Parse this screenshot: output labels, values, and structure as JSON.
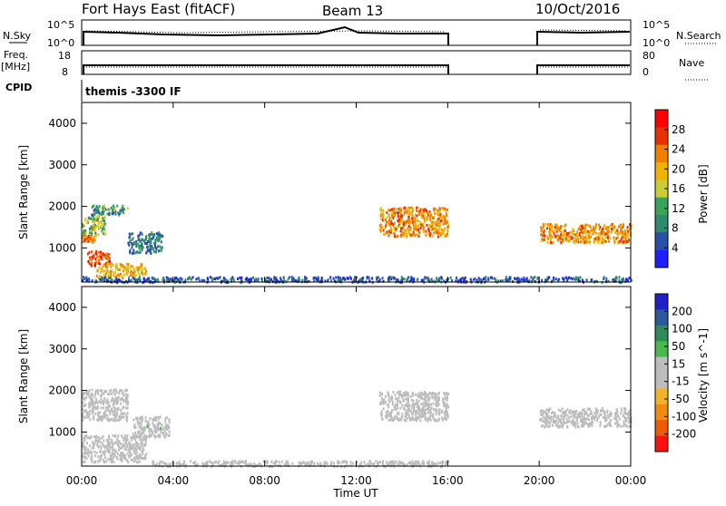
{
  "header": {
    "title": "Fort Hays East (fitACF)",
    "beam": "Beam 13",
    "date": "10/Oct/2016"
  },
  "sky_panel": {
    "left_label": "N.Sky",
    "right_label": "N.Search",
    "ticks": [
      "10^5",
      "10^0"
    ]
  },
  "freq_panel": {
    "left_label": "Freq.",
    "left_unit": "[MHz]",
    "left_ticks": [
      "18",
      "8"
    ],
    "right_label": "Nave",
    "right_ticks": [
      "80",
      "0"
    ]
  },
  "cpid_panel": {
    "label": "CPID",
    "program": "themis -3300 IF"
  },
  "colors": {
    "power_scale": [
      "#1e1eff",
      "#2a4fa8",
      "#2f8a6e",
      "#3aa35a",
      "#cccc33",
      "#f2b300",
      "#f07f00",
      "#e83000",
      "#ff0000"
    ],
    "velocity_scale": [
      "#2020c8",
      "#2a5a9a",
      "#2e8a5a",
      "#4ab84a",
      "#bdbdbd",
      "#bdbdbd",
      "#f2b22a",
      "#f08a10",
      "#f05a00",
      "#ff1010"
    ],
    "ground_scatter": "#bdbdbd"
  },
  "chart_data": [
    {
      "type": "heatmap",
      "title": "",
      "xlabel": "",
      "ylabel": "Slant Range [km]",
      "xlim": [
        0,
        24
      ],
      "ylim": [
        180,
        4500
      ],
      "x_ticks": [
        "00:00",
        "04:00",
        "08:00",
        "12:00",
        "16:00",
        "20:00",
        "00:00"
      ],
      "y_ticks": [
        "1000",
        "2000",
        "3000",
        "4000"
      ],
      "colorbar": {
        "label": "Power [dB]",
        "ticks": [
          "4",
          "8",
          "12",
          "16",
          "20",
          "24",
          "28"
        ],
        "range": [
          0,
          32
        ]
      },
      "scatter_regions": [
        {
          "t": [
            0.0,
            0.6
          ],
          "range": [
            1150,
            1350
          ],
          "value": 24
        },
        {
          "t": [
            0.0,
            1.0
          ],
          "range": [
            1350,
            1800
          ],
          "value": 14
        },
        {
          "t": [
            0.4,
            2.0
          ],
          "range": [
            1800,
            2050
          ],
          "value": 10
        },
        {
          "t": [
            0.2,
            1.2
          ],
          "range": [
            600,
            950
          ],
          "value": 26
        },
        {
          "t": [
            0.6,
            2.8
          ],
          "range": [
            300,
            650
          ],
          "value": 20
        },
        {
          "t": [
            2.0,
            3.5
          ],
          "range": [
            900,
            1400
          ],
          "value": 8
        },
        {
          "t": [
            13.0,
            16.0
          ],
          "range": [
            1300,
            2000
          ],
          "value": 22
        },
        {
          "t": [
            20.0,
            24.0
          ],
          "range": [
            1150,
            1600
          ],
          "value": 22
        },
        {
          "t": [
            0.0,
            24.0
          ],
          "range": [
            200,
            330
          ],
          "value": 6
        }
      ]
    },
    {
      "type": "heatmap",
      "title": "",
      "xlabel": "Time UT",
      "ylabel": "Slant Range [km]",
      "xlim": [
        0,
        24
      ],
      "ylim": [
        180,
        4500
      ],
      "x_ticks": [
        "00:00",
        "04:00",
        "08:00",
        "12:00",
        "16:00",
        "20:00",
        "00:00"
      ],
      "y_ticks": [
        "1000",
        "2000",
        "3000",
        "4000"
      ],
      "colorbar": {
        "label": "Velocity [m s^-1]",
        "ticks": [
          "200",
          "100",
          "50",
          "15",
          "-15",
          "-50",
          "-100",
          "-200"
        ],
        "range": [
          -250,
          250
        ]
      },
      "scatter_regions": [
        {
          "t": [
            0.0,
            2.0
          ],
          "range": [
            1300,
            2050
          ],
          "value": 0
        },
        {
          "t": [
            0.0,
            2.8
          ],
          "range": [
            300,
            950
          ],
          "value": 0
        },
        {
          "t": [
            2.2,
            3.8
          ],
          "range": [
            900,
            1400
          ],
          "value": 30
        },
        {
          "t": [
            13.0,
            16.0
          ],
          "range": [
            1300,
            2000
          ],
          "value": 0
        },
        {
          "t": [
            20.0,
            24.0
          ],
          "range": [
            1150,
            1600
          ],
          "value": 0
        },
        {
          "t": [
            3.0,
            16.0
          ],
          "range": [
            200,
            330
          ],
          "value": -30
        }
      ]
    }
  ]
}
